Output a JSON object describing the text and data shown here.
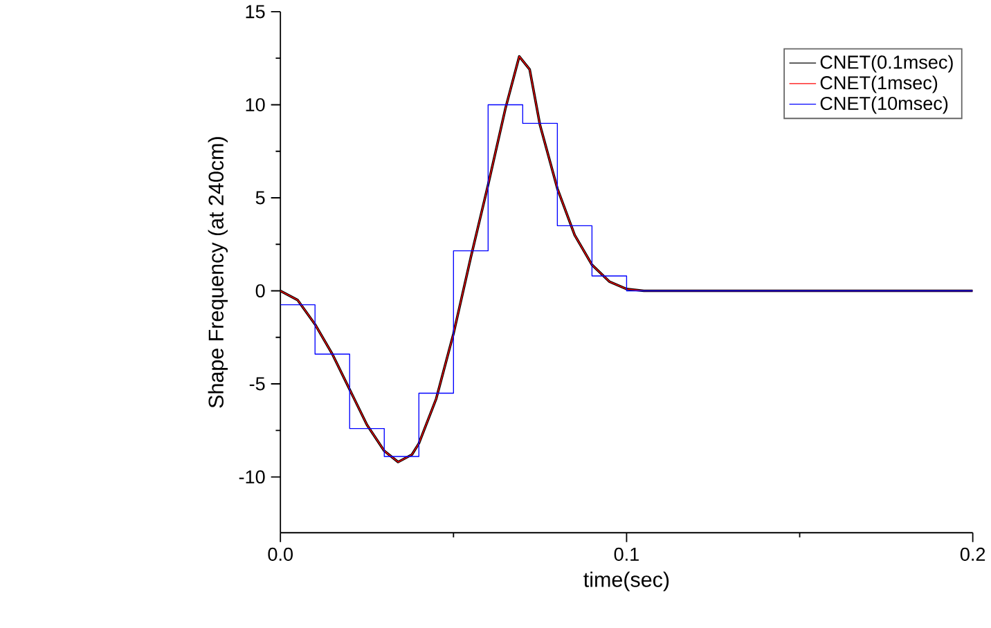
{
  "chart_data": {
    "type": "line",
    "xlabel": "time(sec)",
    "ylabel": "Shape Frequency (at 240cm)",
    "xlim": [
      0,
      0.2
    ],
    "ylim": [
      -13,
      15
    ],
    "xticks": [
      {
        "value": 0,
        "label": "0.0"
      },
      {
        "value": 0.1,
        "label": "0.1"
      },
      {
        "value": 0.2,
        "label": "0.2"
      }
    ],
    "yticks": [
      -10,
      -5,
      0,
      5,
      10,
      15
    ],
    "grid": false,
    "legend": "top right",
    "series": [
      {
        "name": "CNET(0.1msec)",
        "color": "#000000",
        "x": [
          0,
          0.005,
          0.01,
          0.015,
          0.02,
          0.025,
          0.03,
          0.034,
          0.038,
          0.04,
          0.045,
          0.05,
          0.055,
          0.06,
          0.065,
          0.069,
          0.072,
          0.075,
          0.08,
          0.085,
          0.09,
          0.095,
          0.1,
          0.105,
          0.2
        ],
        "values": [
          0,
          -0.5,
          -1.8,
          -3.4,
          -5.3,
          -7.2,
          -8.6,
          -9.2,
          -8.8,
          -8.2,
          -5.8,
          -2.3,
          1.8,
          5.7,
          9.8,
          12.6,
          11.9,
          8.9,
          5.5,
          3.0,
          1.4,
          0.5,
          0.1,
          0,
          0
        ]
      },
      {
        "name": "CNET(1msec)",
        "color": "#ff0000",
        "x": [
          0,
          0.005,
          0.01,
          0.015,
          0.02,
          0.025,
          0.03,
          0.034,
          0.038,
          0.04,
          0.045,
          0.05,
          0.055,
          0.06,
          0.065,
          0.069,
          0.072,
          0.075,
          0.08,
          0.085,
          0.09,
          0.095,
          0.1,
          0.105,
          0.2
        ],
        "values": [
          0,
          -0.5,
          -1.8,
          -3.4,
          -5.3,
          -7.2,
          -8.6,
          -9.2,
          -8.8,
          -8.2,
          -5.8,
          -2.3,
          1.8,
          5.7,
          9.8,
          12.6,
          11.9,
          8.9,
          5.5,
          3.0,
          1.4,
          0.5,
          0.1,
          0,
          0
        ]
      },
      {
        "name": "CNET(10msec)",
        "color": "#0000ff",
        "type": "step",
        "x": [
          0,
          0.01,
          0.02,
          0.03,
          0.04,
          0.05,
          0.06,
          0.07,
          0.08,
          0.09,
          0.1,
          0.2
        ],
        "values": [
          -0.75,
          -3.4,
          -7.4,
          -8.9,
          -5.5,
          2.15,
          10.0,
          9.0,
          3.5,
          0.8,
          0,
          0
        ]
      }
    ]
  }
}
